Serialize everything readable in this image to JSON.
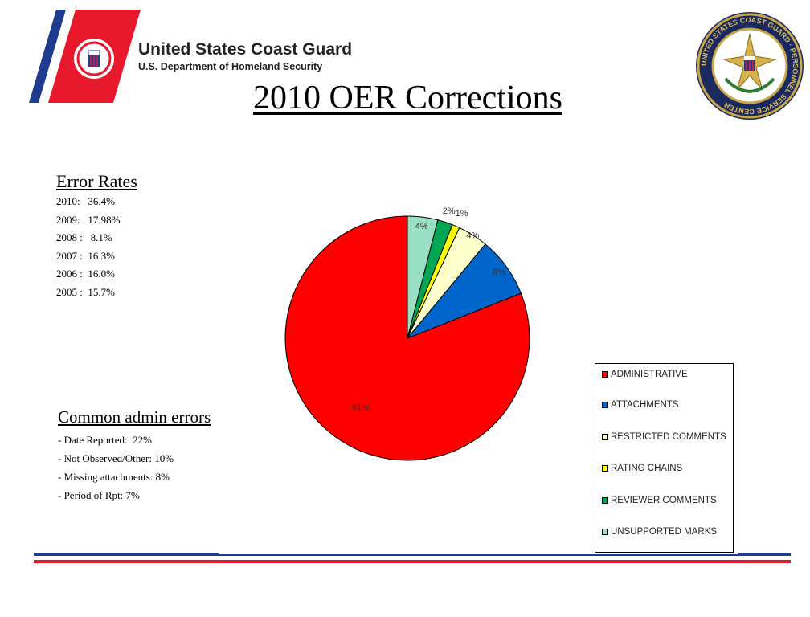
{
  "header": {
    "org_name": "United States Coast Guard",
    "department": "U.S. Department of Homeland Security",
    "stripe_colors": {
      "red": "#e8192c",
      "blue": "#1f3b8f"
    }
  },
  "icons": {
    "emblem": "coast-guard-emblem",
    "seal": "personnel-service-center-seal"
  },
  "seal_text": "UNITED STATES COAST GUARD · PERSONNEL SERVICE CENTER",
  "page_title": "2010 OER Corrections",
  "error_rates": {
    "heading": "Error Rates",
    "items": [
      "2010:   36.4%",
      "2009:   17.98%",
      "2008 :   8.1%",
      "2007 :  16.3%",
      "2006 :  16.0%",
      "2005 :  15.7%"
    ]
  },
  "admin_errors": {
    "heading": "Common admin errors",
    "items": [
      "- Date Reported:  22%",
      "- Not Observed/Other: 10%",
      "- Missing attachments: 8%",
      "- Period of Rpt: 7%"
    ]
  },
  "chart_data": {
    "type": "pie",
    "categories": [
      "ADMINISTRATIVE",
      "ATTACHMENTS",
      "RESTRICTED COMMENTS",
      "RATING CHAINS",
      "REVIEWER COMMENTS",
      "UNSUPPORTED MARKS"
    ],
    "values": [
      81,
      8,
      4,
      1,
      2,
      4
    ],
    "labels": [
      "81%",
      "8%",
      "4%",
      "1%",
      "2%",
      "4%"
    ],
    "colors": [
      "#ff0000",
      "#0066cc",
      "#ffffcc",
      "#ffff00",
      "#00a651",
      "#99e0c4"
    ],
    "legend": {
      "position": "bottom-right"
    }
  }
}
